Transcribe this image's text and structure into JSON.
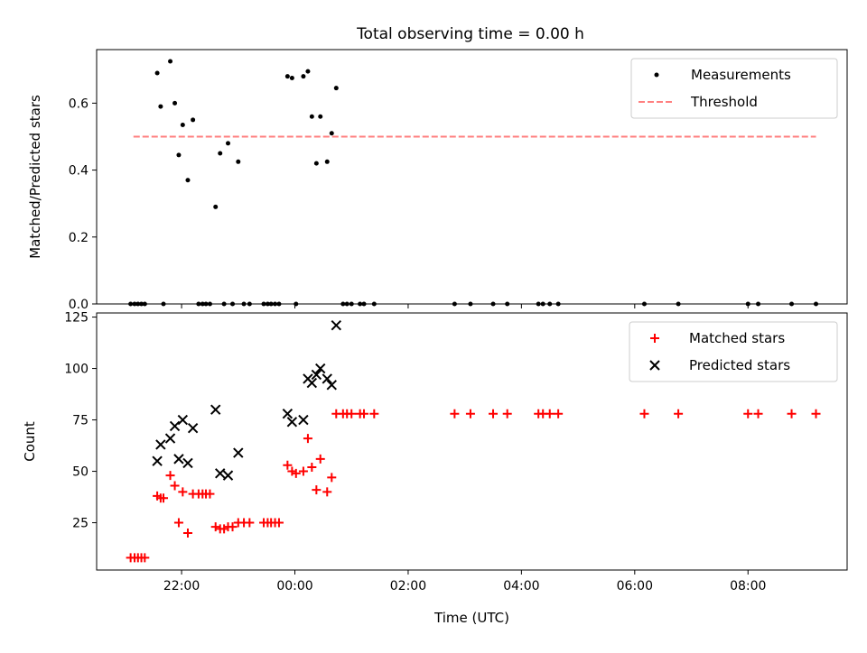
{
  "title": "Total observing time = 0.00 h",
  "chart_data": [
    {
      "type": "scatter",
      "panel": "top",
      "ylabel": "Matched/Predicted stars",
      "ylim": [
        0,
        0.76
      ],
      "yticks": [
        0.0,
        0.2,
        0.4,
        0.6
      ],
      "xlim_hours": [
        -3.5,
        9.75
      ],
      "xticks": [
        "22:00",
        "00:00",
        "02:00",
        "04:00",
        "06:00",
        "08:00"
      ],
      "legend_position": "top-right",
      "legend": [
        {
          "label": "Measurements",
          "marker": "dot",
          "color": "#000000"
        },
        {
          "label": "Threshold",
          "marker": "dashed-line",
          "color": "#ff7f7f"
        }
      ],
      "threshold": {
        "y": 0.5,
        "x_range": [
          -2.85,
          9.2
        ]
      },
      "series": [
        {
          "name": "Measurements",
          "color": "#000000",
          "points": [
            [
              -2.9,
              0
            ],
            [
              -2.83,
              0
            ],
            [
              -2.77,
              0
            ],
            [
              -2.71,
              0
            ],
            [
              -2.65,
              0
            ],
            [
              -2.43,
              0.69
            ],
            [
              -2.37,
              0.59
            ],
            [
              -2.32,
              0
            ],
            [
              -2.2,
              0.725
            ],
            [
              -2.12,
              0.6
            ],
            [
              -2.05,
              0.445
            ],
            [
              -1.98,
              0.535
            ],
            [
              -1.89,
              0.37
            ],
            [
              -1.8,
              0.55
            ],
            [
              -1.7,
              0
            ],
            [
              -1.63,
              0
            ],
            [
              -1.57,
              0
            ],
            [
              -1.5,
              0
            ],
            [
              -1.4,
              0.29
            ],
            [
              -1.32,
              0.45
            ],
            [
              -1.25,
              0
            ],
            [
              -1.18,
              0.48
            ],
            [
              -1.1,
              0
            ],
            [
              -1.0,
              0.425
            ],
            [
              -0.9,
              0
            ],
            [
              -0.8,
              0
            ],
            [
              -0.55,
              0
            ],
            [
              -0.48,
              0
            ],
            [
              -0.42,
              0
            ],
            [
              -0.35,
              0
            ],
            [
              -0.28,
              0
            ],
            [
              -0.13,
              0.68
            ],
            [
              -0.05,
              0.675
            ],
            [
              0.02,
              0
            ],
            [
              0.15,
              0.68
            ],
            [
              0.23,
              0.695
            ],
            [
              0.3,
              0.56
            ],
            [
              0.38,
              0.42
            ],
            [
              0.45,
              0.56
            ],
            [
              0.57,
              0.425
            ],
            [
              0.65,
              0.51
            ],
            [
              0.73,
              0.645
            ],
            [
              0.85,
              0
            ],
            [
              0.92,
              0
            ],
            [
              1.0,
              0
            ],
            [
              1.15,
              0
            ],
            [
              1.22,
              0
            ],
            [
              1.4,
              0
            ],
            [
              2.82,
              0
            ],
            [
              3.1,
              0
            ],
            [
              3.5,
              0
            ],
            [
              3.75,
              0
            ],
            [
              4.3,
              0
            ],
            [
              4.38,
              0
            ],
            [
              4.5,
              0
            ],
            [
              4.65,
              0
            ],
            [
              6.17,
              0
            ],
            [
              6.77,
              0
            ],
            [
              8.0,
              0
            ],
            [
              8.18,
              0
            ],
            [
              8.77,
              0
            ],
            [
              9.2,
              0
            ]
          ]
        }
      ]
    },
    {
      "type": "scatter",
      "panel": "bottom",
      "xlabel": "Time (UTC)",
      "ylabel": "Count",
      "ylim": [
        2,
        127
      ],
      "yticks": [
        25,
        50,
        75,
        100,
        125
      ],
      "xlim_hours": [
        -3.5,
        9.75
      ],
      "xticks": [
        "22:00",
        "00:00",
        "02:00",
        "04:00",
        "06:00",
        "08:00"
      ],
      "legend_position": "top-right",
      "legend": [
        {
          "label": "Matched stars",
          "marker": "plus",
          "color": "#ff0000"
        },
        {
          "label": "Predicted stars",
          "marker": "x",
          "color": "#000000"
        }
      ],
      "series": [
        {
          "name": "Matched stars",
          "marker": "plus",
          "color": "#ff0000",
          "points": [
            [
              -2.9,
              8
            ],
            [
              -2.83,
              8
            ],
            [
              -2.77,
              8
            ],
            [
              -2.71,
              8
            ],
            [
              -2.65,
              8
            ],
            [
              -2.43,
              38
            ],
            [
              -2.37,
              37
            ],
            [
              -2.32,
              37
            ],
            [
              -2.2,
              48
            ],
            [
              -2.12,
              43
            ],
            [
              -2.05,
              25
            ],
            [
              -1.98,
              40
            ],
            [
              -1.89,
              20
            ],
            [
              -1.8,
              39
            ],
            [
              -1.7,
              39
            ],
            [
              -1.63,
              39
            ],
            [
              -1.57,
              39
            ],
            [
              -1.5,
              39
            ],
            [
              -1.4,
              23
            ],
            [
              -1.32,
              22
            ],
            [
              -1.25,
              22
            ],
            [
              -1.18,
              23
            ],
            [
              -1.1,
              23
            ],
            [
              -1.0,
              25
            ],
            [
              -0.9,
              25
            ],
            [
              -0.8,
              25
            ],
            [
              -0.55,
              25
            ],
            [
              -0.48,
              25
            ],
            [
              -0.42,
              25
            ],
            [
              -0.35,
              25
            ],
            [
              -0.28,
              25
            ],
            [
              -0.13,
              53
            ],
            [
              -0.05,
              50
            ],
            [
              0.02,
              49
            ],
            [
              0.15,
              50
            ],
            [
              0.23,
              66
            ],
            [
              0.3,
              52
            ],
            [
              0.38,
              41
            ],
            [
              0.45,
              56
            ],
            [
              0.57,
              40
            ],
            [
              0.65,
              47
            ],
            [
              0.73,
              78
            ],
            [
              0.85,
              78
            ],
            [
              0.92,
              78
            ],
            [
              1.0,
              78
            ],
            [
              1.15,
              78
            ],
            [
              1.22,
              78
            ],
            [
              1.4,
              78
            ],
            [
              2.82,
              78
            ],
            [
              3.1,
              78
            ],
            [
              3.5,
              78
            ],
            [
              3.75,
              78
            ],
            [
              4.3,
              78
            ],
            [
              4.38,
              78
            ],
            [
              4.5,
              78
            ],
            [
              4.65,
              78
            ],
            [
              6.17,
              78
            ],
            [
              6.77,
              78
            ],
            [
              8.0,
              78
            ],
            [
              8.18,
              78
            ],
            [
              8.77,
              78
            ],
            [
              9.2,
              78
            ]
          ]
        },
        {
          "name": "Predicted stars",
          "marker": "x",
          "color": "#000000",
          "points": [
            [
              -2.43,
              55
            ],
            [
              -2.37,
              63
            ],
            [
              -2.2,
              66
            ],
            [
              -2.12,
              72
            ],
            [
              -2.05,
              56
            ],
            [
              -1.98,
              75
            ],
            [
              -1.89,
              54
            ],
            [
              -1.8,
              71
            ],
            [
              -1.4,
              80
            ],
            [
              -1.32,
              49
            ],
            [
              -1.18,
              48
            ],
            [
              -1.0,
              59
            ],
            [
              -0.13,
              78
            ],
            [
              -0.05,
              74
            ],
            [
              0.15,
              75
            ],
            [
              0.23,
              95
            ],
            [
              0.3,
              93
            ],
            [
              0.38,
              97
            ],
            [
              0.45,
              100
            ],
            [
              0.57,
              95
            ],
            [
              0.65,
              92
            ],
            [
              0.73,
              121
            ]
          ]
        }
      ]
    }
  ]
}
